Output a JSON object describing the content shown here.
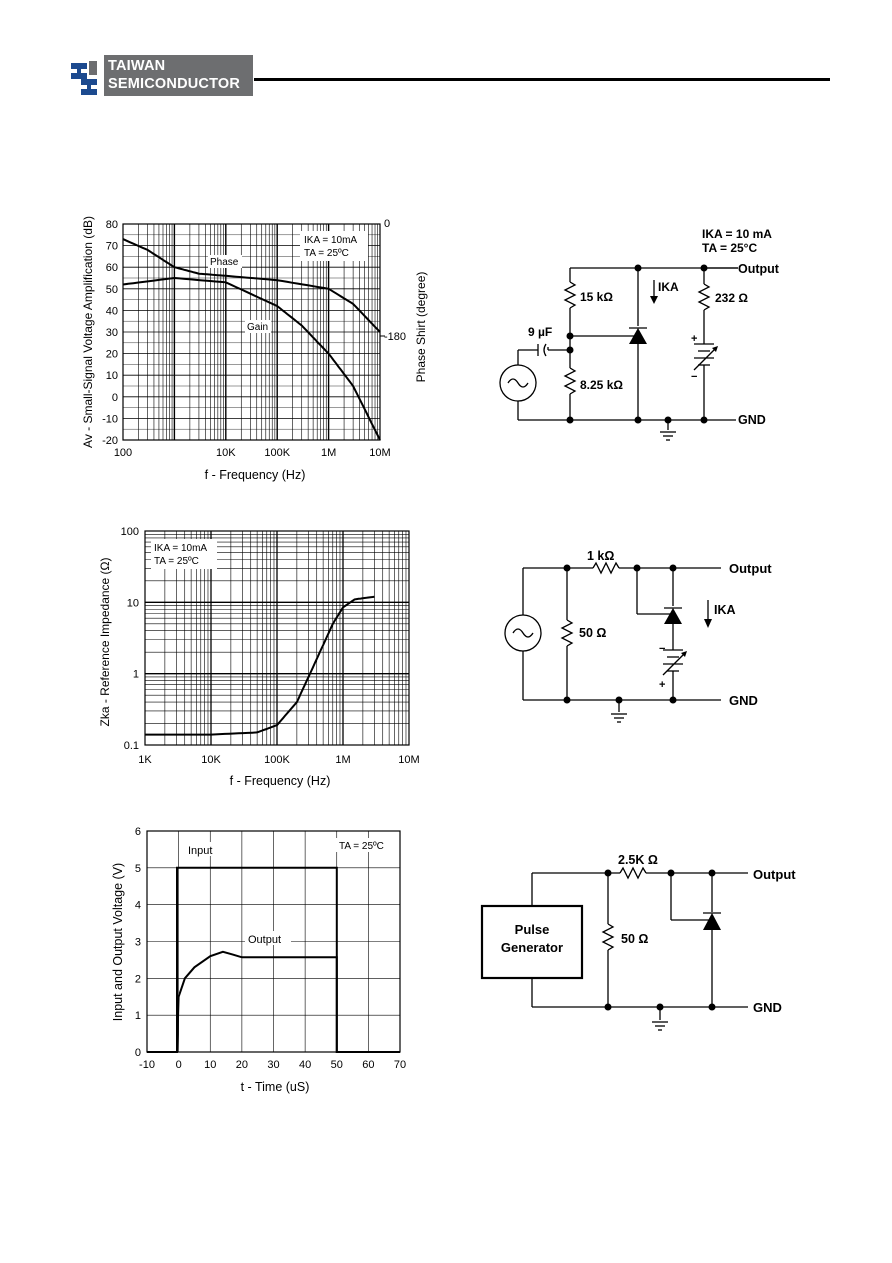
{
  "header": {
    "brand_line1": "TAIWAN",
    "brand_line2": "SEMICONDUCTOR"
  },
  "colors": {
    "logo_gray": "#6d6e70",
    "logo_blue": "#1c4a8f",
    "ink": "#000000"
  },
  "fig1": {
    "ylabel": "Av - Small-Signal Voltage Amplification (dB)",
    "y2label": "Phase Shirt (degree)",
    "xlabel": "f - Frequency (Hz)",
    "y_ticks": [
      "80",
      "70",
      "60",
      "50",
      "40",
      "30",
      "20",
      "10",
      "0",
      "-10",
      "-20"
    ],
    "x_ticks": [
      "100",
      "10K",
      "100K",
      "1M",
      "10M"
    ],
    "y2_ticks": [
      "0",
      "-180"
    ],
    "cond1": "IKA = 10mA",
    "cond2": "TA = 25ºC",
    "phase_label": "Phase",
    "gain_label": "Gain"
  },
  "circuit1": {
    "cond1": "IKA = 10 mA",
    "cond2": "TA = 25°C",
    "r1": "15 kΩ",
    "r2": "8.25 kΩ",
    "r3": "232 Ω",
    "cap": "9 µF",
    "ika": "IKA",
    "output": "Output",
    "gnd": "GND"
  },
  "fig2": {
    "ylabel": "Zka - Reference Impedance (Ω)",
    "xlabel": "f - Frequency (Hz)",
    "y_ticks": [
      "100",
      "10",
      "1",
      "0.1"
    ],
    "x_ticks": [
      "1K",
      "10K",
      "100K",
      "1M",
      "10M"
    ],
    "cond1": "IKA = 10mA",
    "cond2": "TA = 25ºC"
  },
  "circuit2": {
    "r1": "1 kΩ",
    "r2": "50 Ω",
    "ika": "IKA",
    "output": "Output",
    "gnd": "GND"
  },
  "fig3": {
    "ylabel": "Input and Output Voltage (V)",
    "xlabel": "t - Time (uS)",
    "y_ticks": [
      "6",
      "5",
      "4",
      "3",
      "2",
      "1",
      "0"
    ],
    "x_ticks": [
      "-10",
      "0",
      "10",
      "20",
      "30",
      "40",
      "50",
      "60",
      "70"
    ],
    "cond": "TA = 25ºC",
    "input_label": "Input",
    "output_label": "Output"
  },
  "circuit3": {
    "r1": "2.5K Ω",
    "r2": "50 Ω",
    "gen1": "Pulse",
    "gen2": "Generator",
    "output": "Output",
    "gnd": "GND"
  },
  "chart_data": [
    {
      "type": "line",
      "xlabel": "f - Frequency (Hz)",
      "ylabel": "Av - Small-Signal Voltage Amplification (dB)",
      "x_scale": "log",
      "xlim": [
        100,
        10000000
      ],
      "ylim": [
        -20,
        80
      ],
      "series": [
        {
          "name": "Gain",
          "x": [
            100,
            1000,
            10000,
            100000,
            300000,
            1000000,
            3000000,
            10000000
          ],
          "y": [
            52,
            55,
            53,
            42,
            33,
            20,
            5,
            -20
          ]
        },
        {
          "name": "Phase",
          "x": [
            100,
            300,
            1000,
            3000,
            10000,
            100000,
            1000000,
            3000000,
            10000000
          ],
          "y": [
            73,
            68,
            60,
            57,
            56,
            54,
            50,
            43,
            30
          ]
        }
      ]
    },
    {
      "type": "line",
      "xlabel": "f - Frequency (Hz)",
      "ylabel": "Zka - Reference Impedance (Ω)",
      "x_scale": "log",
      "y_scale": "log",
      "xlim": [
        1000,
        10000000
      ],
      "ylim": [
        0.1,
        100
      ],
      "series": [
        {
          "x": [
            1000,
            10000,
            50000,
            100000,
            200000,
            400000,
            700000,
            1000000,
            1500000,
            3000000
          ],
          "y": [
            0.14,
            0.14,
            0.15,
            0.19,
            0.4,
            1.6,
            5,
            8.5,
            11,
            12
          ]
        }
      ]
    },
    {
      "type": "line",
      "xlabel": "t - Time (uS)",
      "ylabel": "Input and Output Voltage (V)",
      "xlim": [
        -10,
        70
      ],
      "ylim": [
        0,
        6
      ],
      "series": [
        {
          "name": "Input",
          "x": [
            -10,
            -0.5,
            -0.5,
            50,
            50,
            70
          ],
          "y": [
            0,
            0,
            5,
            5,
            0,
            0
          ]
        },
        {
          "name": "Output",
          "x": [
            -10,
            -0.5,
            0,
            2,
            5,
            10,
            14,
            17,
            20,
            50,
            50,
            70
          ],
          "y": [
            0,
            0,
            1.5,
            2.0,
            2.3,
            2.6,
            2.72,
            2.65,
            2.57,
            2.57,
            0,
            0
          ]
        }
      ]
    }
  ]
}
